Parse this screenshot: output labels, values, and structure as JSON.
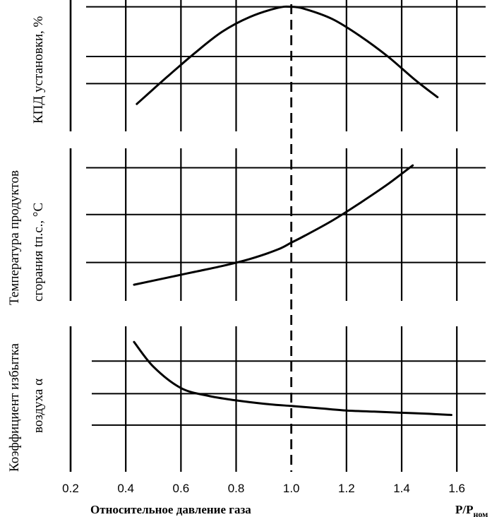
{
  "chart_data": [
    {
      "type": "line",
      "panel": "top",
      "ylabel": "КПД установки, %",
      "x": [
        0.44,
        0.55,
        0.65,
        0.75,
        0.85,
        0.95,
        1.0,
        1.05,
        1.15,
        1.25,
        1.35,
        1.45,
        1.53
      ],
      "y": [
        0.13,
        0.37,
        0.58,
        0.77,
        0.9,
        0.98,
        0.99,
        0.97,
        0.88,
        0.73,
        0.55,
        0.34,
        0.19
      ],
      "ylim": [
        0,
        1.05
      ],
      "gridlines_y": [
        0.31,
        0.55,
        0.99
      ]
    },
    {
      "type": "line",
      "panel": "middle",
      "ylabel_lines": [
        "Температура продуктов",
        "сгорания tп.с., °C"
      ],
      "x": [
        0.43,
        0.55,
        0.65,
        0.75,
        0.85,
        0.95,
        1.0,
        1.05,
        1.15,
        1.25,
        1.35,
        1.44
      ],
      "y": [
        0.09,
        0.15,
        0.2,
        0.25,
        0.31,
        0.39,
        0.45,
        0.51,
        0.64,
        0.79,
        0.95,
        1.11
      ],
      "ylim": [
        0,
        1.25
      ],
      "gridlines_y": [
        0.28,
        0.69,
        1.09
      ]
    },
    {
      "type": "line",
      "panel": "bottom",
      "ylabel_lines": [
        "Коэффициент избытка",
        "воздуха α"
      ],
      "x": [
        0.43,
        0.5,
        0.6,
        0.7,
        0.8,
        0.9,
        1.0,
        1.1,
        1.2,
        1.3,
        1.4,
        1.5,
        1.58
      ],
      "y": [
        0.98,
        0.76,
        0.57,
        0.5,
        0.46,
        0.43,
        0.41,
        0.39,
        0.37,
        0.36,
        0.35,
        0.34,
        0.33
      ],
      "ylim": [
        0,
        1.0
      ],
      "gridlines_y": [
        0.24,
        0.52,
        0.81
      ]
    }
  ],
  "x_axis": {
    "xlim": [
      0.2,
      1.73
    ],
    "ticks": [
      "0.2",
      "0.4",
      "0.6",
      "0.8",
      "1.0",
      "1.2",
      "1.4",
      "1.6"
    ],
    "tick_values": [
      0.2,
      0.4,
      0.6,
      0.8,
      1.0,
      1.2,
      1.4,
      1.6
    ],
    "gridlines_x": [
      0.4,
      0.6,
      0.8,
      1.2,
      1.4,
      1.6
    ],
    "dashed_reference": 1.0,
    "label": "Относительное давление газа",
    "unit_main": "P/P",
    "unit_sub": "ном"
  }
}
